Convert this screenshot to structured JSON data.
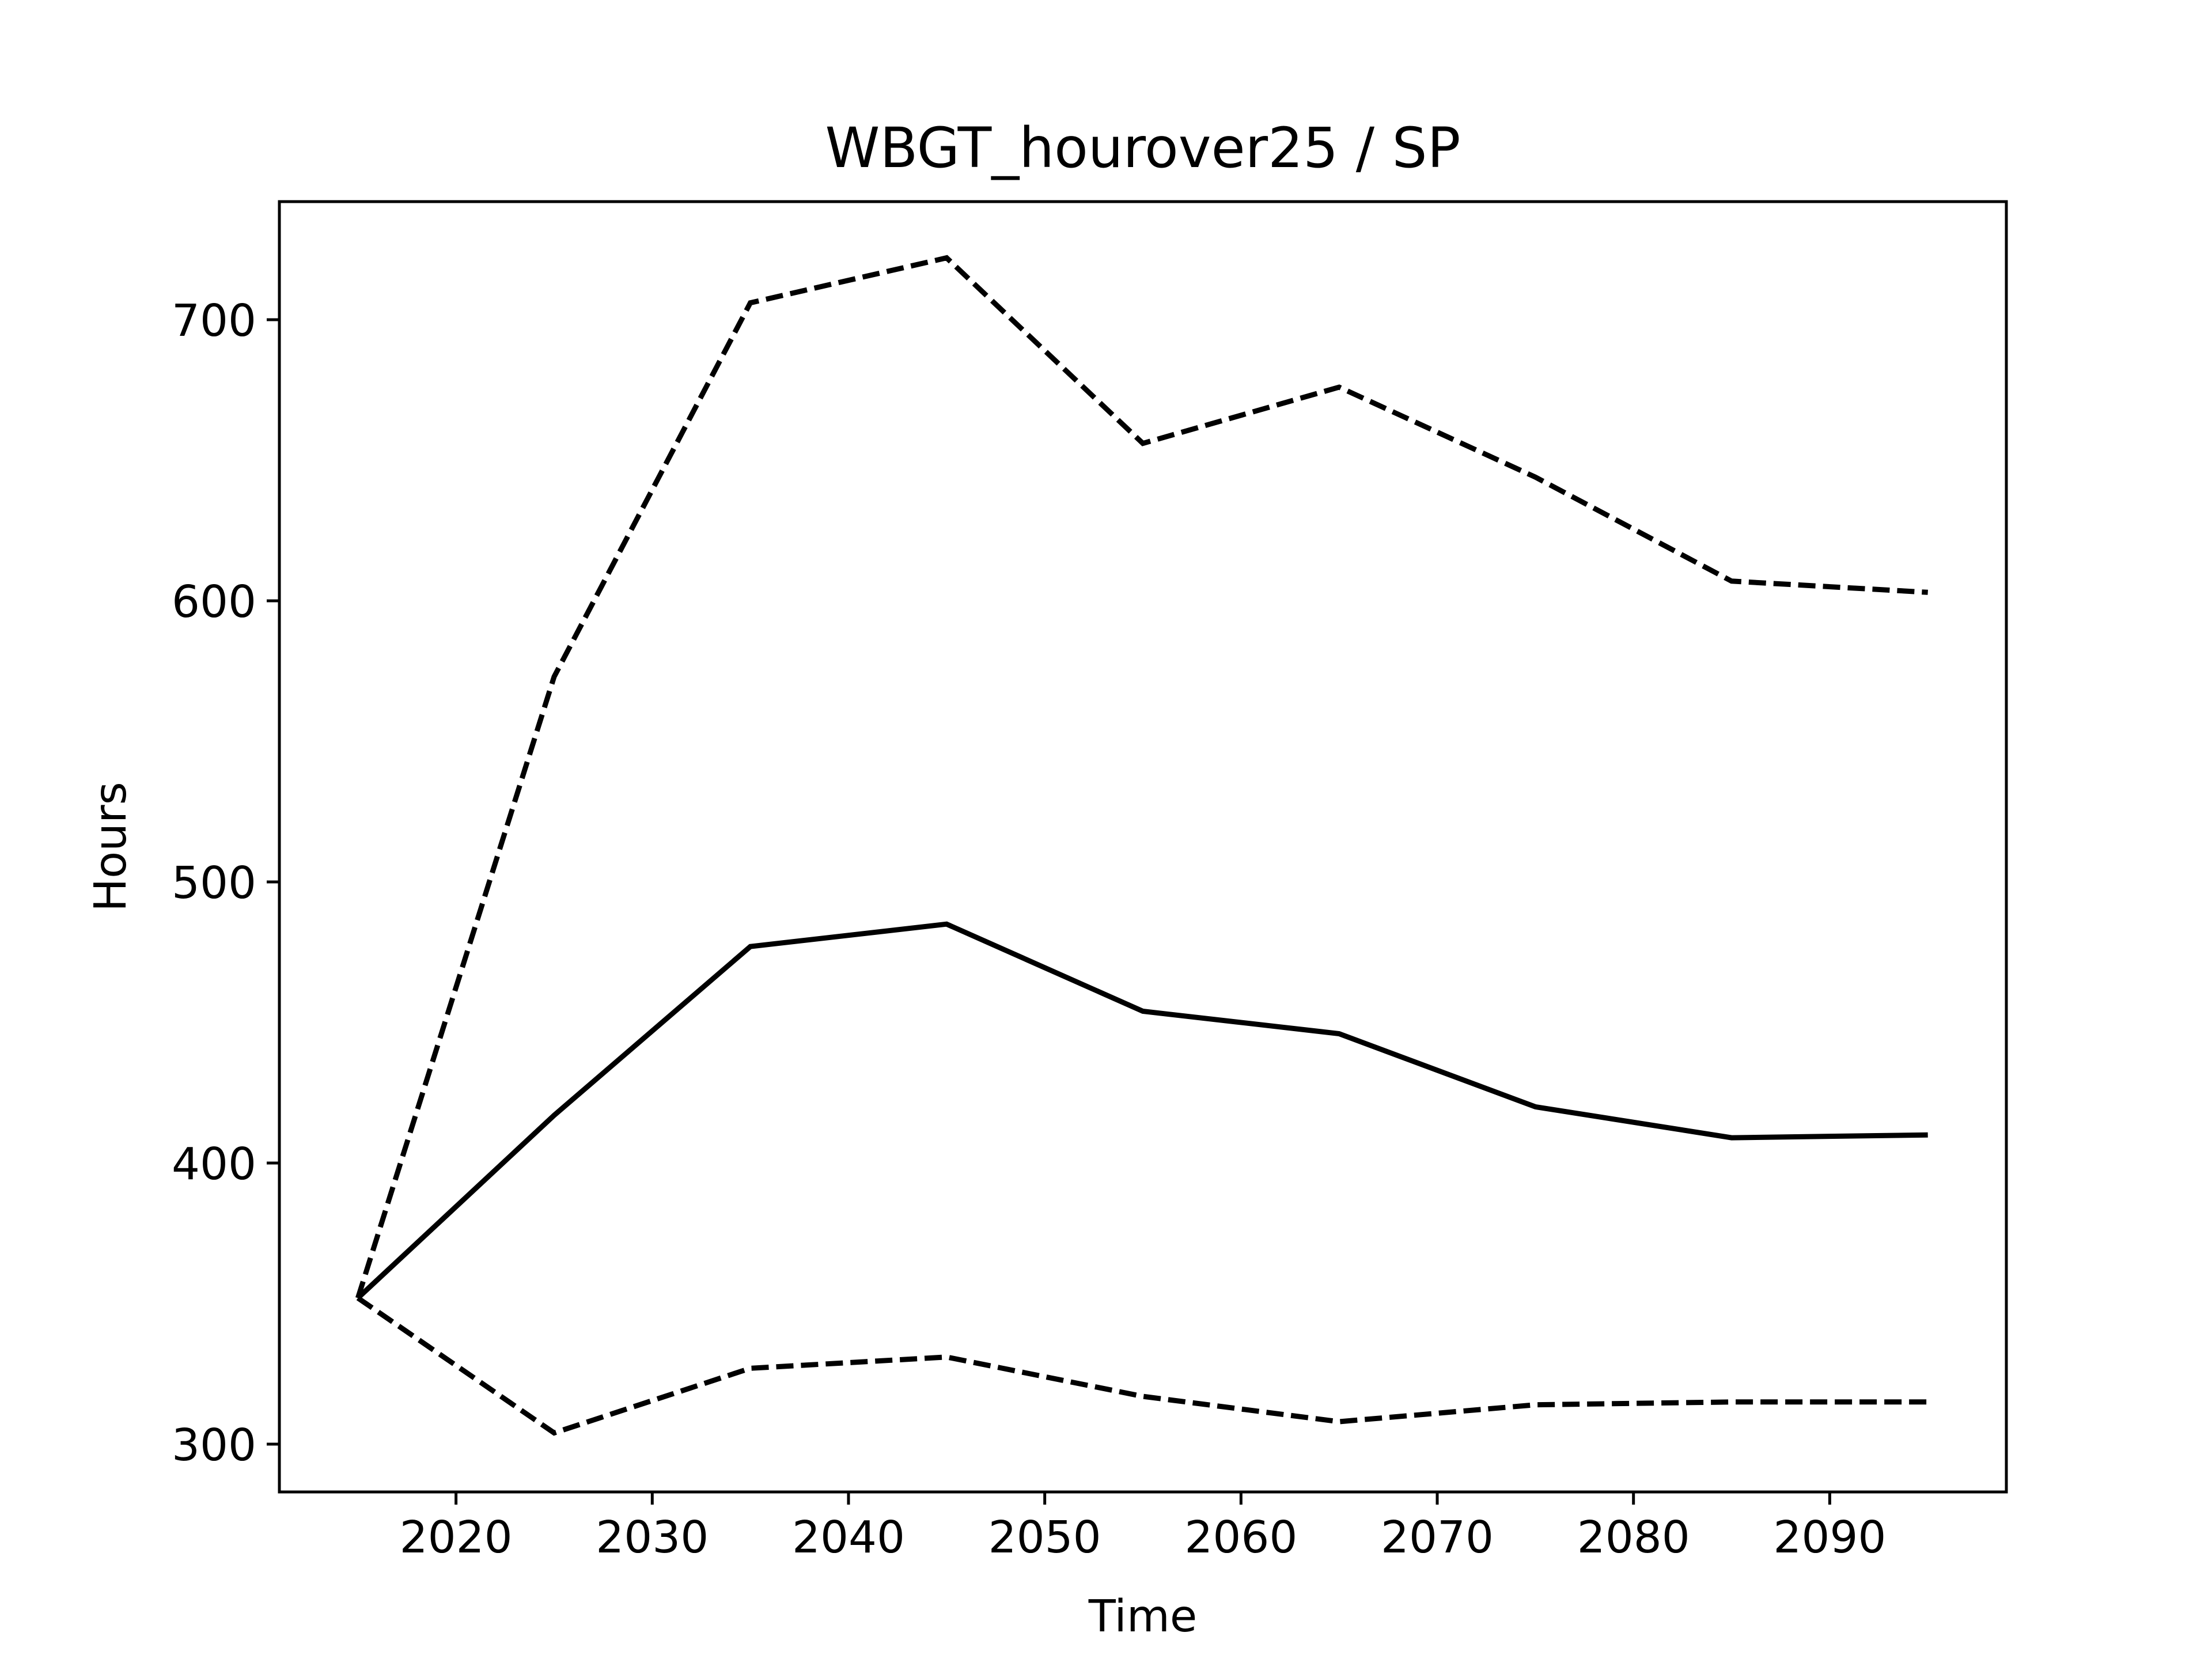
{
  "chart_data": {
    "type": "line",
    "title": "WBGT_hourover25 / SP",
    "xlabel": "Time",
    "ylabel": "Hours",
    "x": [
      2015,
      2025,
      2035,
      2045,
      2055,
      2065,
      2075,
      2085,
      2095
    ],
    "xlim": [
      2011,
      2099
    ],
    "ylim": [
      283,
      742
    ],
    "xticks": [
      2020,
      2030,
      2040,
      2050,
      2060,
      2070,
      2080,
      2090
    ],
    "yticks": [
      300,
      400,
      500,
      600,
      700
    ],
    "grid": false,
    "legend": "none",
    "series": [
      {
        "style": "solid",
        "color": "#000000",
        "values": [
          352,
          417,
          477,
          485,
          454,
          446,
          420,
          409,
          410
        ]
      },
      {
        "style": "dashed",
        "color": "#000000",
        "values": [
          352,
          573,
          706,
          722,
          656,
          676,
          644,
          607,
          603
        ]
      },
      {
        "style": "dashed",
        "color": "#000000",
        "values": [
          352,
          304,
          327,
          331,
          317,
          308,
          314,
          315,
          315
        ]
      }
    ]
  }
}
